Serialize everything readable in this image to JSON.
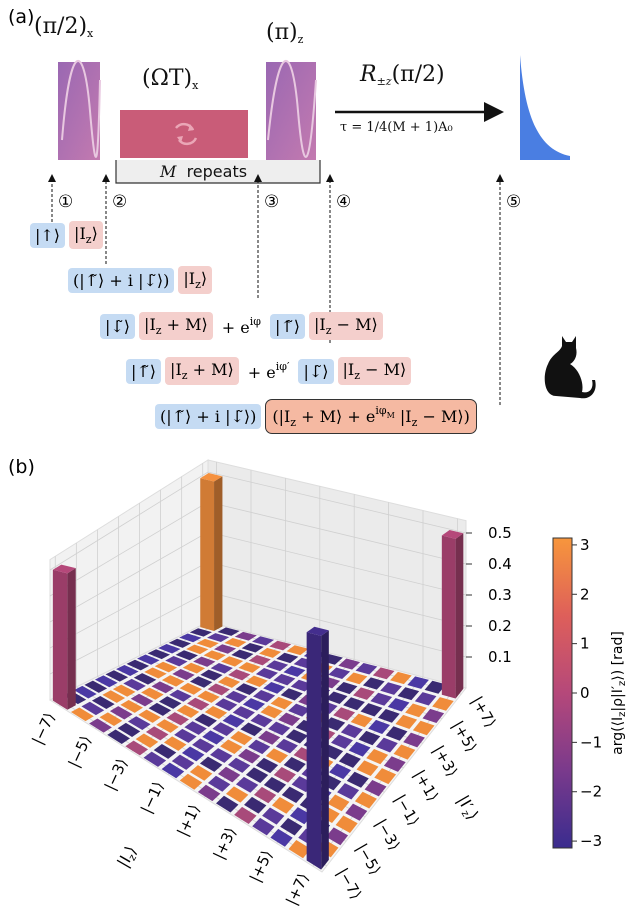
{
  "panel_a": {
    "label": "(a)",
    "pulses": [
      {
        "base": "(π/2)",
        "sub": "x"
      },
      {
        "base": "(ΩT)",
        "sub": "x"
      },
      {
        "base": "(π)",
        "sub": "z"
      }
    ],
    "rotation": {
      "base": "R",
      "sub": "±z",
      "arg": "(π/2)"
    },
    "tau": "τ = 1/4(M + 1)A₀",
    "repeats": {
      "var": "M",
      "text": "repeats"
    },
    "steps": [
      "①",
      "②",
      "③",
      "④",
      "⑤"
    ],
    "states": [
      [
        {
          "box": "blue",
          "parts": [
            {
              "t": "|↑⟩"
            }
          ]
        },
        {
          "box": "pink",
          "parts": [
            {
              "t": "|I"
            },
            {
              "t": "z",
              "s": "sub"
            },
            {
              "t": "⟩"
            }
          ]
        }
      ],
      [
        {
          "box": "blue",
          "parts": [
            {
              "t": "(|↑̃⟩ + i |↓̃⟩)"
            }
          ]
        },
        {
          "box": "pink",
          "parts": [
            {
              "t": "|I"
            },
            {
              "t": "z",
              "s": "sub"
            },
            {
              "t": "⟩"
            }
          ]
        }
      ],
      [
        {
          "box": "blue",
          "parts": [
            {
              "t": "|↓̃⟩"
            }
          ]
        },
        {
          "box": "pink",
          "parts": [
            {
              "t": "|I"
            },
            {
              "t": "z",
              "s": "sub"
            },
            {
              "t": " + M⟩"
            }
          ]
        },
        {
          "box": "none",
          "parts": [
            {
              "t": "+ e"
            },
            {
              "t": "iφ",
              "s": "sup"
            }
          ]
        },
        {
          "box": "blue",
          "parts": [
            {
              "t": "|↑̃⟩"
            }
          ]
        },
        {
          "box": "pink",
          "parts": [
            {
              "t": "|I"
            },
            {
              "t": "z",
              "s": "sub"
            },
            {
              "t": " − M⟩"
            }
          ]
        }
      ],
      [
        {
          "box": "blue",
          "parts": [
            {
              "t": "|↑̃⟩"
            }
          ]
        },
        {
          "box": "pink",
          "parts": [
            {
              "t": "|I"
            },
            {
              "t": "z",
              "s": "sub"
            },
            {
              "t": " + M⟩"
            }
          ]
        },
        {
          "box": "none",
          "parts": [
            {
              "t": "+ e"
            },
            {
              "t": "iφ′",
              "s": "sup"
            }
          ]
        },
        {
          "box": "blue",
          "parts": [
            {
              "t": "|↓̃⟩"
            }
          ]
        },
        {
          "box": "pink",
          "parts": [
            {
              "t": "|I"
            },
            {
              "t": "z",
              "s": "sub"
            },
            {
              "t": " − M⟩"
            }
          ]
        }
      ],
      [
        {
          "box": "blue",
          "parts": [
            {
              "t": "(|↑̃⟩ + i |↓̃⟩)"
            }
          ]
        },
        {
          "box": "cat",
          "parts": [
            {
              "t": "(|I"
            },
            {
              "t": "z",
              "s": "sub"
            },
            {
              "t": " + M⟩ + e"
            },
            {
              "t": "iφ",
              "s": "sup"
            },
            {
              "t": "M",
              "s": "supsub"
            },
            {
              "t": " |I"
            },
            {
              "t": "z",
              "s": "sub"
            },
            {
              "t": " − M⟩)"
            }
          ]
        }
      ]
    ]
  },
  "panel_b": {
    "label": "(b)",
    "type": "bar3d",
    "categories": [
      {
        "value": -7,
        "label": "|−7⟩"
      },
      {
        "value": -5,
        "label": "|−5⟩"
      },
      {
        "value": -3,
        "label": "|−3⟩"
      },
      {
        "value": -1,
        "label": "|−1⟩"
      },
      {
        "value": 1,
        "label": "|+1⟩"
      },
      {
        "value": 3,
        "label": "|+3⟩"
      },
      {
        "value": 5,
        "label": "|+5⟩"
      },
      {
        "value": 7,
        "label": "|+7⟩"
      }
    ],
    "x_axis_label": {
      "base": "|I",
      "sub": "z",
      "end": "⟩"
    },
    "y_axis_label": {
      "base": "|I′",
      "sub": "z",
      "end": "⟩"
    },
    "zlim": [
      0,
      0.5
    ],
    "zticks": [
      0.1,
      0.2,
      0.3,
      0.4,
      0.5
    ],
    "bars": [
      {
        "x": -7,
        "y": 7,
        "value": 0.5,
        "phase": 3.0
      },
      {
        "x": -7,
        "y": -7,
        "value": 0.5,
        "phase": 0
      },
      {
        "x": 7,
        "y": 7,
        "value": 0.5,
        "phase": 0
      },
      {
        "x": 7,
        "y": -7,
        "value": 0.5,
        "phase": -2.9
      }
    ],
    "colorbar": {
      "label": [
        {
          "t": "arg(⟨I"
        },
        {
          "t": "z",
          "s": "sub"
        },
        {
          "t": "|ρ|I′"
        },
        {
          "t": "z",
          "s": "sub"
        },
        {
          "t": "⟩) [rad]"
        }
      ],
      "lim": [
        -3.14,
        3.14
      ],
      "ticks": [
        3,
        2,
        1,
        0,
        {
          "value": -1,
          "label": "−1"
        },
        {
          "value": -2,
          "label": "−2"
        },
        {
          "value": -3,
          "label": "−3"
        }
      ],
      "colormap": [
        "#3a2c8e",
        "#7a3a8c",
        "#b5487a",
        "#de5f5a",
        "#f7963c"
      ]
    }
  }
}
